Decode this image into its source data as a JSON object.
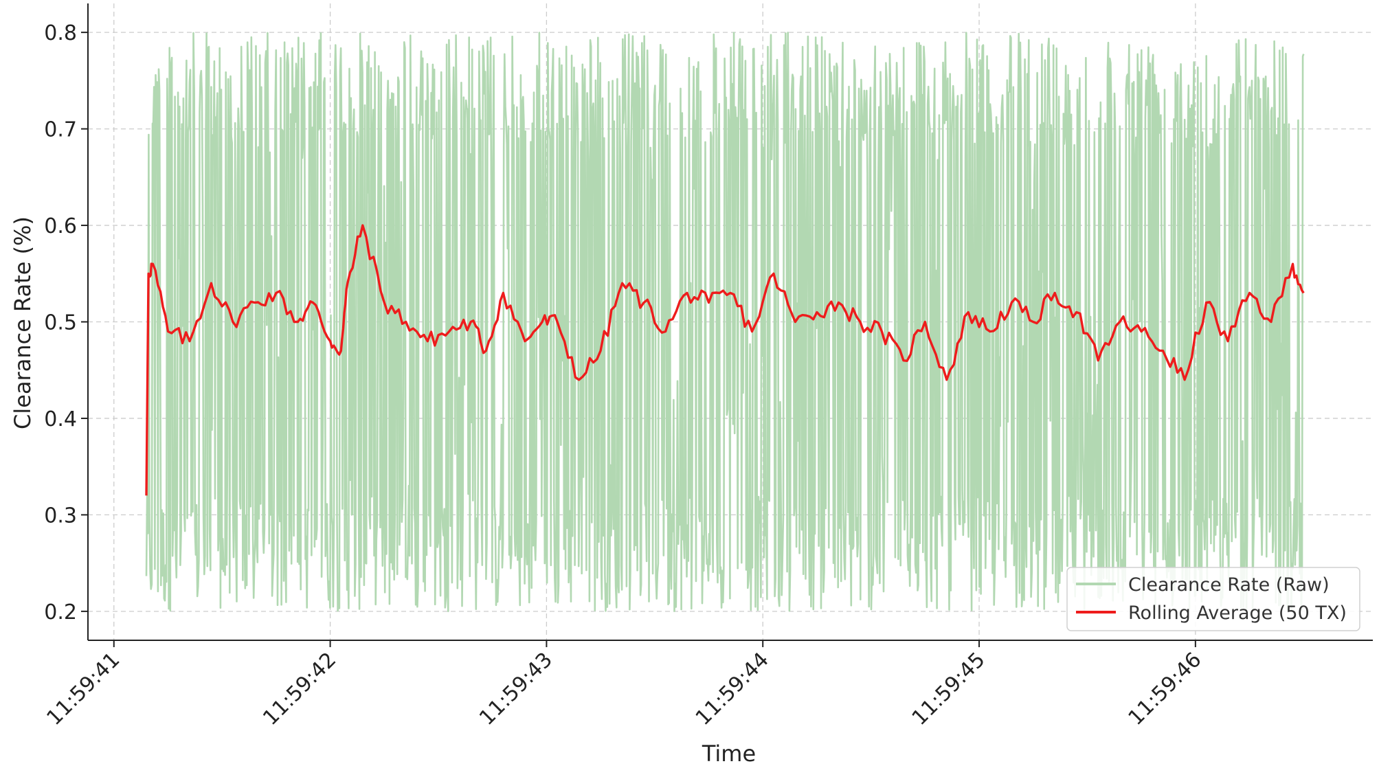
{
  "chart_data": {
    "type": "line",
    "title": "",
    "xlabel": "Time",
    "ylabel": "Clearance Rate (%)",
    "ylim": [
      0.17,
      0.83
    ],
    "y_ticks": [
      "0.2",
      "0.3",
      "0.4",
      "0.5",
      "0.6",
      "0.7",
      "0.8"
    ],
    "x_ticks": [
      "11:59:41",
      "11:59:42",
      "11:59:43",
      "11:59:44",
      "11:59:45",
      "11:59:46"
    ],
    "x_range_seconds_after_11_59_41": [
      -0.12,
      5.82
    ],
    "data_x_range_seconds_after_11_59_41": [
      0.15,
      5.5
    ],
    "grid": true,
    "legend_position": "bottom-right",
    "series": [
      {
        "name": "Clearance Rate (Raw)",
        "color": "#b2d8b2",
        "kind": "raw",
        "value_range": [
          0.2,
          0.8
        ]
      },
      {
        "name": "Rolling Average (50 TX)",
        "color": "#ee1c1c",
        "kind": "rolling",
        "x": [
          0.15,
          0.16,
          0.18,
          0.25,
          0.35,
          0.45,
          0.55,
          0.65,
          0.75,
          0.85,
          0.92,
          1.0,
          1.05,
          1.08,
          1.15,
          1.25,
          1.35,
          1.45,
          1.55,
          1.65,
          1.72,
          1.8,
          1.9,
          1.98,
          2.05,
          2.15,
          2.25,
          2.35,
          2.45,
          2.55,
          2.65,
          2.75,
          2.85,
          2.95,
          3.05,
          3.15,
          3.25,
          3.35,
          3.45,
          3.55,
          3.65,
          3.75,
          3.85,
          3.95,
          4.05,
          4.15,
          4.25,
          4.35,
          4.45,
          4.55,
          4.65,
          4.75,
          4.85,
          4.95,
          5.05,
          5.15,
          5.25,
          5.35,
          5.45,
          5.5
        ],
        "values": [
          0.32,
          0.55,
          0.56,
          0.49,
          0.48,
          0.54,
          0.5,
          0.52,
          0.53,
          0.5,
          0.52,
          0.48,
          0.47,
          0.54,
          0.6,
          0.52,
          0.5,
          0.48,
          0.49,
          0.5,
          0.47,
          0.53,
          0.48,
          0.5,
          0.5,
          0.44,
          0.47,
          0.54,
          0.52,
          0.49,
          0.53,
          0.52,
          0.53,
          0.49,
          0.55,
          0.5,
          0.51,
          0.52,
          0.5,
          0.49,
          0.46,
          0.5,
          0.44,
          0.51,
          0.49,
          0.52,
          0.5,
          0.53,
          0.51,
          0.46,
          0.5,
          0.49,
          0.47,
          0.44,
          0.52,
          0.48,
          0.53,
          0.5,
          0.56,
          0.53
        ]
      }
    ]
  }
}
